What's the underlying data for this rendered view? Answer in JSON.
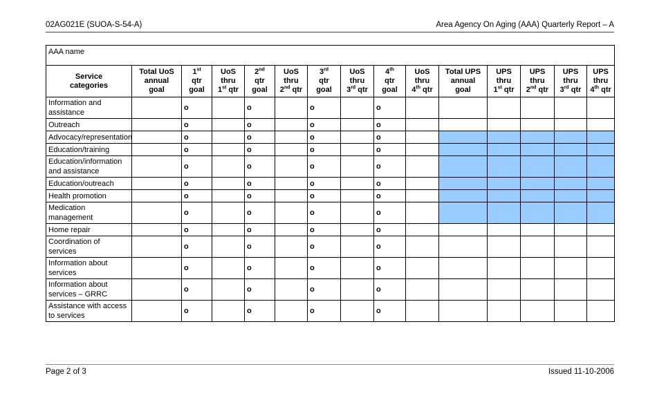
{
  "page": {
    "header_left": "02AG021E (SUOA-S-54-A)",
    "header_right": "Area Agency On Aging (AAA) Quarterly Report – A",
    "footer_left": "Page 2 of 3",
    "footer_right": "Issued 11-10-2006"
  },
  "table": {
    "aaa_name_label": "AAA name",
    "columns": [
      {
        "key": "service_categories",
        "label": "Service\ncategories"
      },
      {
        "key": "total_uos_annual_goal",
        "label": "Total UoS\nannual\ngoal"
      },
      {
        "key": "q1_goal",
        "label": "1^st^\nqtr\ngoal"
      },
      {
        "key": "uos_thru_q1",
        "label": "UoS\nthru\n1^st^ qtr"
      },
      {
        "key": "q2_goal",
        "label": "2^nd^\nqtr\ngoal"
      },
      {
        "key": "uos_thru_q2",
        "label": "UoS\nthru\n2^nd^ qtr"
      },
      {
        "key": "q3_goal",
        "label": "3^rd^\nqtr\ngoal"
      },
      {
        "key": "uos_thru_q3",
        "label": "UoS\nthru\n3^rd^ qtr"
      },
      {
        "key": "q4_goal",
        "label": "4^th^\nqtr\ngoal"
      },
      {
        "key": "uos_thru_q4",
        "label": "UoS\nthru\n4^th^ qtr"
      },
      {
        "key": "total_ups_annual_goal",
        "label": "Total UPS\nannual\ngoal"
      },
      {
        "key": "ups_thru_q1",
        "label": "UPS\nthru\n1^st^ qtr"
      },
      {
        "key": "ups_thru_q2",
        "label": "UPS\nthru\n2^nd^ qtr"
      },
      {
        "key": "ups_thru_q3",
        "label": "UPS\nthru\n3^rd^ qtr"
      },
      {
        "key": "ups_thru_q4",
        "label": "UPS\nthru\n4^th^ qtr"
      }
    ],
    "marker": "o",
    "marker_columns": [
      "q1_goal",
      "q2_goal",
      "q3_goal",
      "q4_goal"
    ],
    "highlighted_columns": [
      "total_ups_annual_goal",
      "ups_thru_q1",
      "ups_thru_q2",
      "ups_thru_q3",
      "ups_thru_q4"
    ],
    "highlight_color": "#99CCFF",
    "rows": [
      {
        "category": "Information and\nassistance",
        "ups_highlighted": false
      },
      {
        "category": "Outreach",
        "ups_highlighted": false
      },
      {
        "category": "Advocacy/representation",
        "ups_highlighted": true
      },
      {
        "category": "Education/training",
        "ups_highlighted": true
      },
      {
        "category": "Education/information\nand assistance",
        "ups_highlighted": true
      },
      {
        "category": "Education/outreach",
        "ups_highlighted": true
      },
      {
        "category": "Health promotion",
        "ups_highlighted": true
      },
      {
        "category": "Medication\nmanagement",
        "ups_highlighted": true
      },
      {
        "category": "Home repair",
        "ups_highlighted": false
      },
      {
        "category": "Coordination of\nservices",
        "ups_highlighted": false
      },
      {
        "category": "Information about\nservices",
        "ups_highlighted": false
      },
      {
        "category": "Information about\nservices – GRRC",
        "ups_highlighted": false
      },
      {
        "category": "Assistance with access\nto services",
        "ups_highlighted": false
      }
    ]
  }
}
